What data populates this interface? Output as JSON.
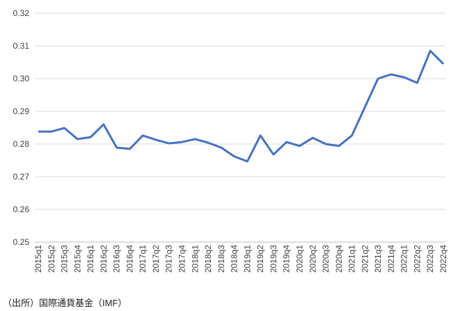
{
  "chart_data": {
    "type": "line",
    "source": "（出所）国際通貨基金（IMF）",
    "categories": [
      "2015q1",
      "2015q2",
      "2015q3",
      "2015q4",
      "2016q1",
      "2016q2",
      "2016q3",
      "2016q4",
      "2017q1",
      "2017q2",
      "2017q3",
      "2017q4",
      "2018q1",
      "2018q2",
      "2018q3",
      "2018q4",
      "2019q1",
      "2019q2",
      "2019q3",
      "2019q4",
      "2020q1",
      "2020q2",
      "2020q3",
      "2020q4",
      "2021q1",
      "2021q2",
      "2021q3",
      "2021q4",
      "2022q1",
      "2022q2",
      "2022q3",
      "2022q4"
    ],
    "values": [
      0.2838,
      0.2838,
      0.2849,
      0.2815,
      0.2821,
      0.286,
      0.2789,
      0.2785,
      0.2826,
      0.2813,
      0.2802,
      0.2806,
      0.2815,
      0.2804,
      0.2789,
      0.2762,
      0.2747,
      0.2826,
      0.2768,
      0.2806,
      0.2794,
      0.2819,
      0.28,
      0.2794,
      0.2826,
      0.2913,
      0.3,
      0.3013,
      0.3004,
      0.2987,
      0.3085,
      0.3045
    ],
    "color": "#4472c4",
    "ylim": [
      0.25,
      0.32
    ],
    "yticks": [
      0.25,
      0.26,
      0.27,
      0.28,
      0.29,
      {
        "value": 0.3,
        "label": "0.30"
      },
      0.31,
      0.32
    ],
    "grid": true
  }
}
